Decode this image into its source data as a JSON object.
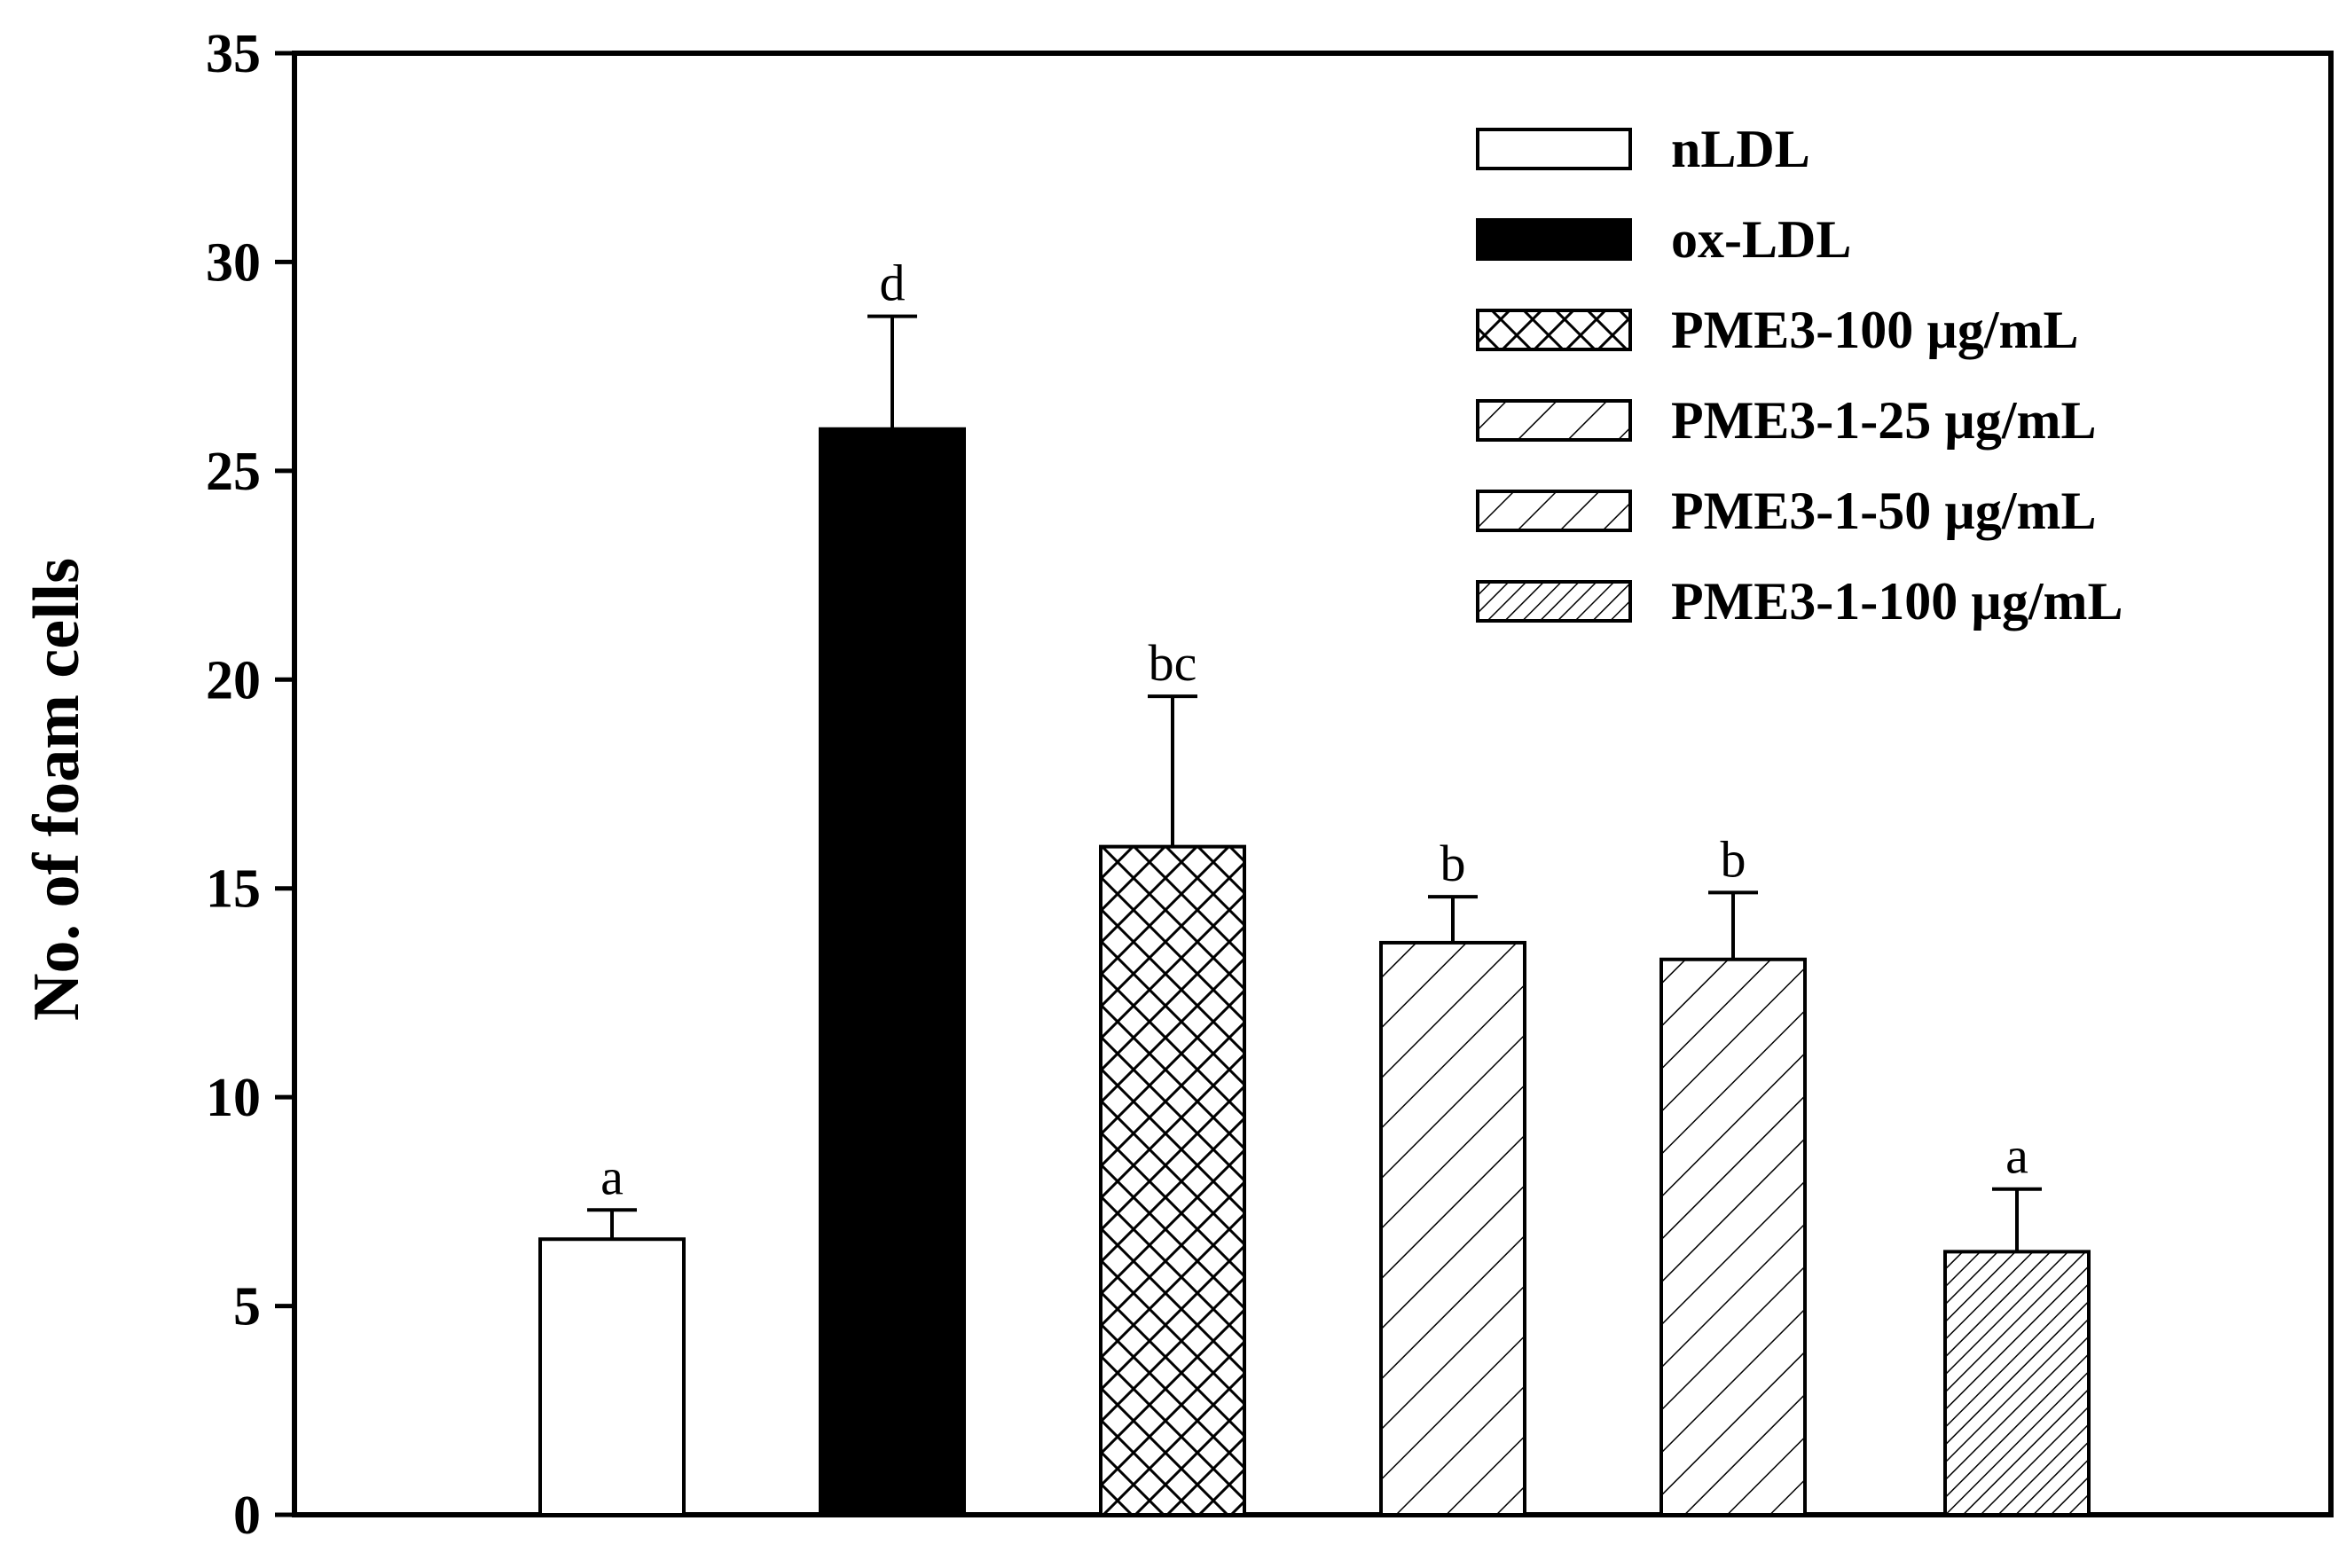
{
  "chart_data": {
    "type": "bar",
    "ylabel": "No. of foam cells",
    "xlabel": "",
    "ylim": [
      0,
      35
    ],
    "yticks": [
      0,
      5,
      10,
      15,
      20,
      25,
      30,
      35
    ],
    "ytick_labels": [
      "0",
      "5",
      "10",
      "15",
      "20",
      "25",
      "30",
      "35"
    ],
    "grid": false,
    "legend_position": "top-right",
    "series": [
      {
        "name": "nLDL",
        "value": 6.6,
        "error": 0.7,
        "letter": "a",
        "fill": "white"
      },
      {
        "name": "ox-LDL",
        "value": 26.0,
        "error": 2.7,
        "letter": "d",
        "fill": "black"
      },
      {
        "name": "PME3-100 µg/mL",
        "value": 16.0,
        "error": 3.6,
        "letter": "bc",
        "fill": "crosshatch"
      },
      {
        "name": "PME3-1-25 µg/mL",
        "value": 13.7,
        "error": 1.1,
        "letter": "b",
        "fill": "diagonal-sparse"
      },
      {
        "name": "PME3-1-50 µg/mL",
        "value": 13.3,
        "error": 1.6,
        "letter": "b",
        "fill": "diagonal-medium"
      },
      {
        "name": "PME3-1-100 µg/mL",
        "value": 6.3,
        "error": 1.5,
        "letter": "a",
        "fill": "diagonal-dense"
      }
    ]
  }
}
